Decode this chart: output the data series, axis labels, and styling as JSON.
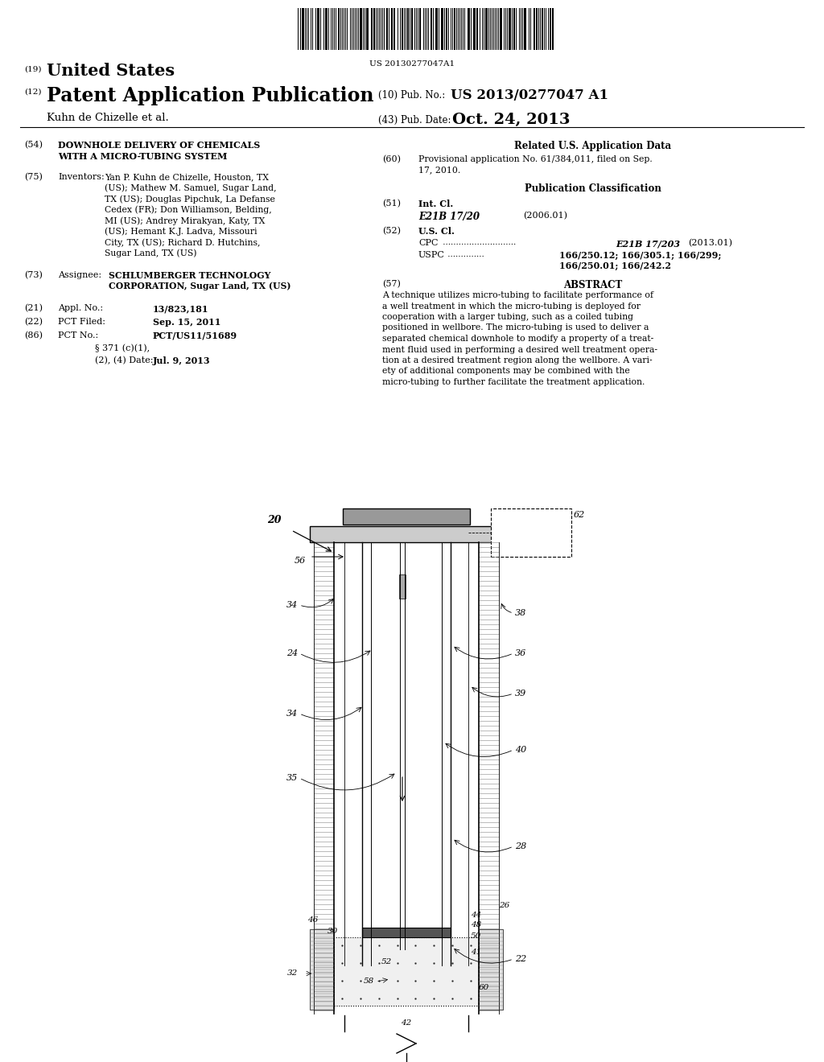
{
  "bg_color": "#ffffff",
  "barcode_text": "US 20130277047A1",
  "pub_no": "US 2013/0277047 A1",
  "pub_date": "Oct. 24, 2013",
  "author_line": "Kuhn de Chizelle et al.",
  "field54_title1": "DOWNHOLE DELIVERY OF CHEMICALS",
  "field54_title2": "WITH A MICRO-TUBING SYSTEM",
  "field75_inventors": "Yan P. Kuhn de Chizelle, Houston, TX\n(US); Mathew M. Samuel, Sugar Land,\nTX (US); Douglas Pipchuk, La Defanse\nCedex (FR); Don Williamson, Belding,\nMI (US); Andrey Mirakyan, Katy, TX\n(US); Hemant K.J. Ladva, Missouri\nCity, TX (US); Richard D. Hutchins,\nSugar Land, TX (US)",
  "field73_assignee1": "SCHLUMBERGER TECHNOLOGY",
  "field73_assignee2": "CORPORATION, Sugar Land, TX (US)",
  "field21_val": "13/823,181",
  "field22_val": "Sep. 15, 2011",
  "field86_val": "PCT/US11/51689",
  "field86b": "§ 371 (c)(1),",
  "field86c": "(2), (4) Date:",
  "field86d": "Jul. 9, 2013",
  "field60_text": "Provisional application No. 61/384,011, filed on Sep.\n17, 2010.",
  "field51_class": "E21B 17/20",
  "field51_year": "(2006.01)",
  "field52_cpc_val": "E21B 17/203",
  "field52_cpc_year": "(2013.01)",
  "field52_uspc_val1": "166/250.12; 166/305.1; 166/299;",
  "field52_uspc_val2": "166/250.01; 166/242.2",
  "abstract_text1": "A technique utilizes micro-tubing to facilitate performance of",
  "abstract_text2": "a well treatment in which the micro-tubing is deployed for",
  "abstract_text3": "cooperation with a larger tubing, such as a coiled tubing",
  "abstract_text4": "positioned in wellbore. The micro-tubing is used to deliver a",
  "abstract_text5": "separated chemical downhole to modify a property of a treat-",
  "abstract_text6": "ment fluid used in performing a desired well treatment opera-",
  "abstract_text7": "tion at a desired treatment region along the wellbore. A vari-",
  "abstract_text8": "ety of additional components may be combined with the",
  "abstract_text9": "micro-tubing to further facilitate the treatment application."
}
